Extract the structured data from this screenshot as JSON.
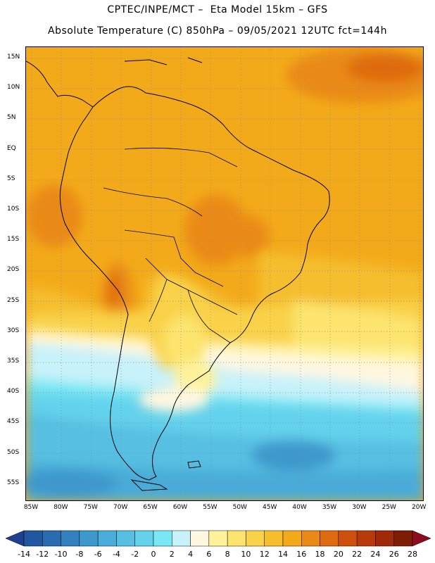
{
  "title_line1": "CPTEC/INPE/MCT –  Eta Model 15km – GFS",
  "title_line2": "Absolute Temperature (C) 850hPa – 09/05/2021 12UTC fct=144h",
  "lat_labels": [
    "15N",
    "10N",
    "5N",
    "EQ",
    "5S",
    "10S",
    "15S",
    "20S",
    "25S",
    "30S",
    "35S",
    "40S",
    "45S",
    "50S",
    "55S"
  ],
  "lon_labels": [
    "85W",
    "80W",
    "75W",
    "70W",
    "65W",
    "60W",
    "55W",
    "50W",
    "45W",
    "40W",
    "35W",
    "30W",
    "25W",
    "20W"
  ],
  "colorbar": {
    "labels": [
      "-14",
      "-12",
      "-10",
      "-8",
      "-6",
      "-4",
      "-2",
      "0",
      "2",
      "4",
      "6",
      "8",
      "10",
      "12",
      "14",
      "16",
      "18",
      "20",
      "22",
      "24",
      "26",
      "28"
    ],
    "colors": [
      "#1f3f8f",
      "#2356a0",
      "#2a6cb0",
      "#3382bf",
      "#3d98cc",
      "#4aacd8",
      "#56bfe2",
      "#64d2ec",
      "#7ae8f4",
      "#c8f2fa",
      "#fff7e0",
      "#fff29a",
      "#fce46e",
      "#f9d24a",
      "#f5be2e",
      "#f3aa1a",
      "#ea8a16",
      "#df6a10",
      "#cf500c",
      "#b83a0a",
      "#9e2a08",
      "#7e1c06",
      "#8e0c20"
    ]
  }
}
